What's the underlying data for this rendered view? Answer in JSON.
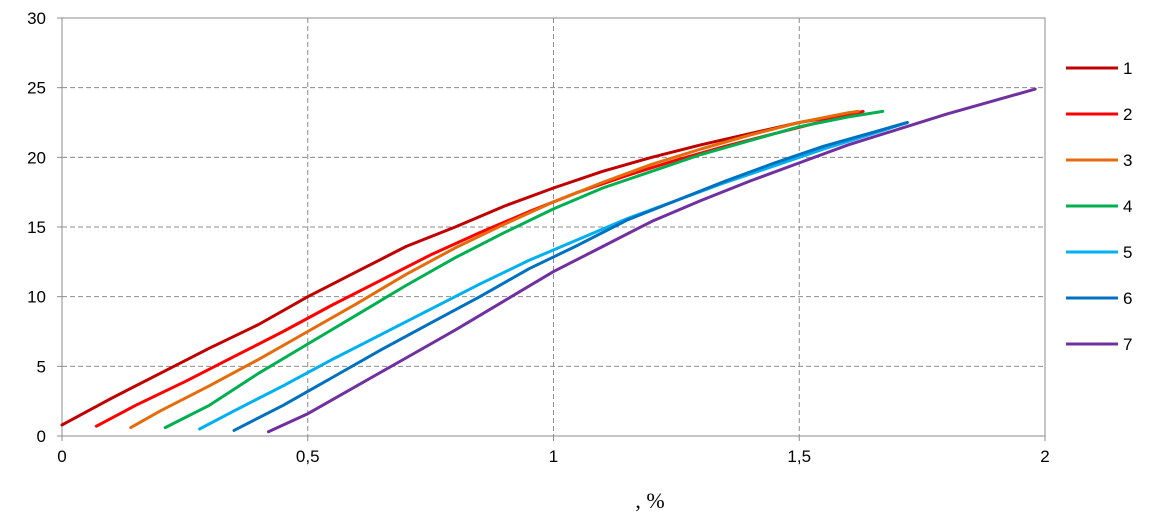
{
  "chart_data": {
    "type": "line",
    "title": "",
    "xlabel": ", %",
    "ylabel": "",
    "xlim": [
      0,
      2
    ],
    "ylim": [
      0,
      30
    ],
    "xticks": [
      {
        "value": 0,
        "label": "0"
      },
      {
        "value": 0.5,
        "label": "0,5"
      },
      {
        "value": 1,
        "label": "1"
      },
      {
        "value": 1.5,
        "label": "1,5"
      },
      {
        "value": 2,
        "label": "2"
      }
    ],
    "yticks": [
      {
        "value": 0,
        "label": "0"
      },
      {
        "value": 5,
        "label": "5"
      },
      {
        "value": 10,
        "label": "10"
      },
      {
        "value": 15,
        "label": "15"
      },
      {
        "value": 20,
        "label": "20"
      },
      {
        "value": 25,
        "label": "25"
      },
      {
        "value": 30,
        "label": "30"
      }
    ],
    "grid": true,
    "legend_position": "right",
    "series": [
      {
        "name": "1",
        "color": "#c00000",
        "x": [
          0,
          0.1,
          0.2,
          0.3,
          0.4,
          0.5,
          0.6,
          0.7,
          0.8,
          0.9,
          1.0,
          1.1,
          1.2,
          1.3,
          1.4,
          1.5,
          1.6
        ],
        "y": [
          0.8,
          2.7,
          4.5,
          6.3,
          8.0,
          10.0,
          11.8,
          13.6,
          15.0,
          16.5,
          17.8,
          19.0,
          20.0,
          20.9,
          21.7,
          22.5,
          23.1
        ]
      },
      {
        "name": "2",
        "color": "#ff0000",
        "x": [
          0.07,
          0.15,
          0.25,
          0.35,
          0.45,
          0.55,
          0.65,
          0.75,
          0.85,
          0.95,
          1.05,
          1.15,
          1.25,
          1.35,
          1.45,
          1.55,
          1.63
        ],
        "y": [
          0.7,
          2.2,
          3.9,
          5.7,
          7.5,
          9.4,
          11.2,
          13.0,
          14.6,
          16.1,
          17.5,
          18.7,
          19.8,
          20.8,
          21.7,
          22.6,
          23.3
        ]
      },
      {
        "name": "3",
        "color": "#e46c0a",
        "x": [
          0.14,
          0.2,
          0.3,
          0.4,
          0.5,
          0.6,
          0.7,
          0.8,
          0.9,
          1.0,
          1.1,
          1.2,
          1.3,
          1.4,
          1.5,
          1.6,
          1.62
        ],
        "y": [
          0.6,
          1.8,
          3.6,
          5.5,
          7.5,
          9.5,
          11.6,
          13.5,
          15.2,
          16.8,
          18.2,
          19.5,
          20.6,
          21.6,
          22.5,
          23.2,
          23.3
        ]
      },
      {
        "name": "4",
        "color": "#00b050",
        "x": [
          0.21,
          0.3,
          0.4,
          0.5,
          0.6,
          0.7,
          0.8,
          0.9,
          1.0,
          1.1,
          1.2,
          1.3,
          1.4,
          1.5,
          1.6,
          1.67
        ],
        "y": [
          0.6,
          2.2,
          4.5,
          6.6,
          8.7,
          10.8,
          12.8,
          14.6,
          16.3,
          17.8,
          19.0,
          20.2,
          21.2,
          22.2,
          22.9,
          23.3
        ]
      },
      {
        "name": "5",
        "color": "#00b0f0",
        "x": [
          0.28,
          0.35,
          0.45,
          0.55,
          0.65,
          0.75,
          0.85,
          0.95,
          1.05,
          1.15,
          1.25,
          1.35,
          1.45,
          1.55,
          1.65,
          1.72
        ],
        "y": [
          0.5,
          1.8,
          3.6,
          5.5,
          7.3,
          9.1,
          10.9,
          12.6,
          14.1,
          15.6,
          16.9,
          18.2,
          19.4,
          20.6,
          21.7,
          22.5
        ]
      },
      {
        "name": "6",
        "color": "#0070c0",
        "x": [
          0.35,
          0.45,
          0.55,
          0.65,
          0.75,
          0.85,
          0.95,
          1.05,
          1.15,
          1.25,
          1.35,
          1.45,
          1.55,
          1.65,
          1.72
        ],
        "y": [
          0.4,
          2.2,
          4.2,
          6.2,
          8.1,
          10.0,
          12.0,
          13.7,
          15.5,
          16.9,
          18.3,
          19.6,
          20.8,
          21.8,
          22.5
        ]
      },
      {
        "name": "7",
        "color": "#7030a0",
        "x": [
          0.42,
          0.5,
          0.6,
          0.7,
          0.8,
          0.9,
          1.0,
          1.1,
          1.2,
          1.3,
          1.4,
          1.5,
          1.6,
          1.7,
          1.8,
          1.9,
          1.98
        ],
        "y": [
          0.3,
          1.6,
          3.6,
          5.6,
          7.6,
          9.7,
          11.8,
          13.6,
          15.4,
          16.9,
          18.3,
          19.6,
          20.9,
          22.0,
          23.1,
          24.1,
          24.9
        ]
      }
    ]
  }
}
